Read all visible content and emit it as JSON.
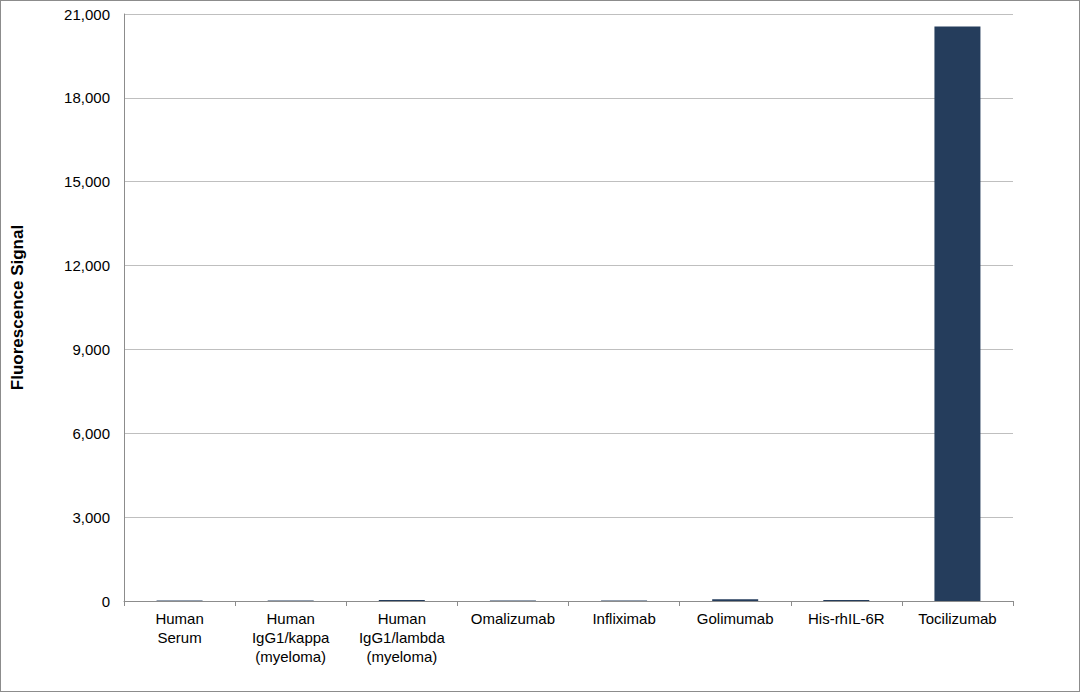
{
  "chart_data": {
    "type": "bar",
    "y_label": "Fluorescence Signal",
    "categories": [
      "Human\nSerum",
      "Human\nIgG1/kappa\n(myeloma)",
      "Human\nIgG1/lambda\n(myeloma)",
      "Omalizumab",
      "Infliximab",
      "Golimumab",
      "His-rhIL-6R",
      "Tocilizumab"
    ],
    "values": [
      20,
      20,
      40,
      20,
      15,
      60,
      40,
      20550
    ],
    "color": "#253d5c",
    "ylim": [
      0,
      21000
    ],
    "yticks": [
      0,
      {
        "value": 3000,
        "label": "3,000"
      },
      {
        "value": 6000,
        "label": "6,000"
      },
      {
        "value": 9000,
        "label": "9,000"
      },
      {
        "value": 12000,
        "label": "12,000"
      },
      {
        "value": 15000,
        "label": "15,000"
      },
      {
        "value": 18000,
        "label": "18,000"
      },
      {
        "value": 21000,
        "label": "21,000"
      }
    ],
    "grid": true
  }
}
